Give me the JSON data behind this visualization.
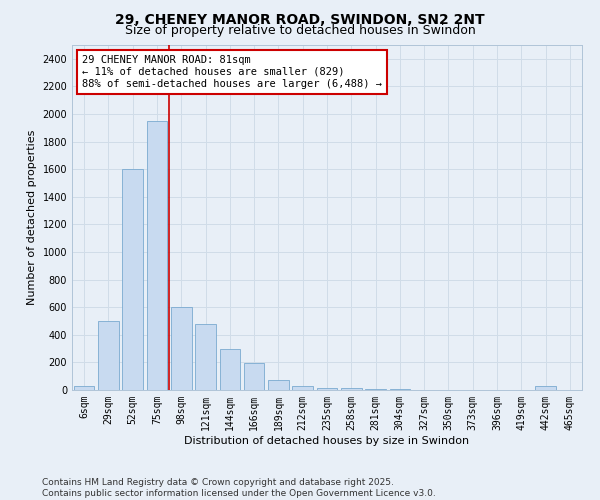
{
  "title": "29, CHENEY MANOR ROAD, SWINDON, SN2 2NT",
  "subtitle": "Size of property relative to detached houses in Swindon",
  "xlabel": "Distribution of detached houses by size in Swindon",
  "ylabel": "Number of detached properties",
  "categories": [
    "6sqm",
    "29sqm",
    "52sqm",
    "75sqm",
    "98sqm",
    "121sqm",
    "144sqm",
    "166sqm",
    "189sqm",
    "212sqm",
    "235sqm",
    "258sqm",
    "281sqm",
    "304sqm",
    "327sqm",
    "350sqm",
    "373sqm",
    "396sqm",
    "419sqm",
    "442sqm",
    "465sqm"
  ],
  "values": [
    30,
    500,
    1600,
    1950,
    600,
    480,
    300,
    195,
    75,
    30,
    15,
    15,
    10,
    10,
    0,
    0,
    0,
    0,
    0,
    30,
    0
  ],
  "bar_color": "#c8daf0",
  "bar_edge_color": "#7aaad0",
  "vline_x_index": 3.5,
  "vline_color": "#cc0000",
  "annotation_text": "29 CHENEY MANOR ROAD: 81sqm\n← 11% of detached houses are smaller (829)\n88% of semi-detached houses are larger (6,488) →",
  "annotation_box_color": "#ffffff",
  "annotation_box_edge": "#cc0000",
  "ylim": [
    0,
    2500
  ],
  "yticks": [
    0,
    200,
    400,
    600,
    800,
    1000,
    1200,
    1400,
    1600,
    1800,
    2000,
    2200,
    2400
  ],
  "grid_color": "#d0dce8",
  "background_color": "#e8eff7",
  "footer": "Contains HM Land Registry data © Crown copyright and database right 2025.\nContains public sector information licensed under the Open Government Licence v3.0.",
  "title_fontsize": 10,
  "subtitle_fontsize": 9,
  "axis_label_fontsize": 8,
  "tick_fontsize": 7,
  "annotation_fontsize": 7.5,
  "footer_fontsize": 6.5
}
